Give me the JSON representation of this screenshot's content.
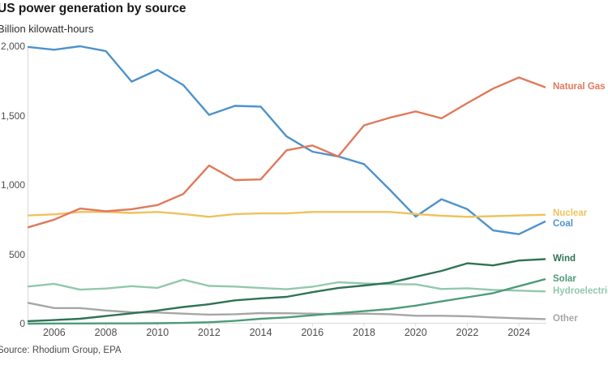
{
  "header": {
    "title": "US power generation by source",
    "subtitle": "Billion kilowatt-hours"
  },
  "footer": {
    "source": "Source: Rhodium Group, EPA"
  },
  "colors": {
    "background": "#ffffff",
    "axis": "#d9d9d9",
    "title_text": "#191919",
    "tick_text": "#4e4e4e",
    "natural_gas": "#e0795b",
    "nuclear": "#eec25e",
    "coal": "#4d92cc",
    "wind": "#2f7355",
    "solar": "#4c9c79",
    "hydroelectric": "#92c8ac",
    "other": "#a6a6a6"
  },
  "chart_data": {
    "type": "line",
    "title": "US power generation by source",
    "ylabel": "Billion kilowatt-hours",
    "xlabel": "",
    "grid": false,
    "legend_position": "right-edge-labels",
    "xlim": [
      2005,
      2025
    ],
    "ylim": [
      0,
      2000
    ],
    "x": [
      2005,
      2006,
      2007,
      2008,
      2009,
      2010,
      2011,
      2012,
      2013,
      2014,
      2015,
      2016,
      2017,
      2018,
      2019,
      2020,
      2021,
      2022,
      2023,
      2024,
      2025
    ],
    "x_tick_labels": [
      "2006",
      "2008",
      "2010",
      "2012",
      "2014",
      "2016",
      "2018",
      "2020",
      "2022",
      "2024"
    ],
    "x_tick_values": [
      2006,
      2008,
      2010,
      2012,
      2014,
      2016,
      2018,
      2020,
      2022,
      2024
    ],
    "y_ticks": [
      {
        "value": 0,
        "label": "0"
      },
      {
        "value": 500,
        "label": "500"
      },
      {
        "value": 1000,
        "label": "1,000"
      },
      {
        "value": 1500,
        "label": "1,500"
      },
      {
        "value": 2000,
        "label": "2,000"
      }
    ],
    "series": [
      {
        "name": "Natural Gas",
        "key": "natural_gas",
        "color": "#e0795b",
        "values": [
          695,
          750,
          830,
          810,
          825,
          855,
          935,
          1140,
          1035,
          1040,
          1250,
          1285,
          1205,
          1430,
          1485,
          1530,
          1480,
          1590,
          1695,
          1775,
          1705
        ]
      },
      {
        "name": "Nuclear",
        "key": "nuclear",
        "color": "#eec25e",
        "values": [
          780,
          788,
          805,
          805,
          798,
          805,
          790,
          770,
          790,
          795,
          795,
          805,
          805,
          805,
          805,
          790,
          778,
          770,
          775,
          780,
          785
        ]
      },
      {
        "name": "Coal",
        "key": "coal",
        "color": "#4d92cc",
        "values": [
          1995,
          1975,
          2000,
          1965,
          1745,
          1830,
          1720,
          1505,
          1570,
          1565,
          1350,
          1240,
          1205,
          1150,
          965,
          772,
          897,
          825,
          672,
          645,
          735
        ]
      },
      {
        "name": "Wind",
        "key": "wind",
        "color": "#2f7355",
        "values": [
          18,
          26,
          35,
          55,
          74,
          95,
          120,
          140,
          168,
          182,
          193,
          227,
          257,
          275,
          295,
          338,
          380,
          435,
          420,
          455,
          465
        ]
      },
      {
        "name": "Solar",
        "key": "solar",
        "color": "#4c9c79",
        "values": [
          0,
          1,
          1,
          2,
          2,
          3,
          5,
          10,
          20,
          35,
          45,
          60,
          75,
          90,
          105,
          130,
          160,
          190,
          220,
          270,
          320
        ]
      },
      {
        "name": "Hydroelectric",
        "key": "hydroelectric",
        "color": "#92c8ac",
        "values": [
          268,
          287,
          245,
          253,
          270,
          258,
          317,
          272,
          267,
          257,
          248,
          266,
          298,
          290,
          285,
          283,
          250,
          255,
          243,
          238,
          232
        ]
      },
      {
        "name": "Other",
        "key": "other",
        "color": "#a6a6a6",
        "values": [
          150,
          112,
          112,
          95,
          82,
          80,
          72,
          65,
          68,
          76,
          75,
          72,
          68,
          72,
          68,
          57,
          57,
          53,
          45,
          38,
          33
        ]
      }
    ],
    "draw_order": [
      "Other",
      "Hydroelectric",
      "Solar",
      "Wind",
      "Coal",
      "Nuclear",
      "Natural Gas"
    ]
  }
}
